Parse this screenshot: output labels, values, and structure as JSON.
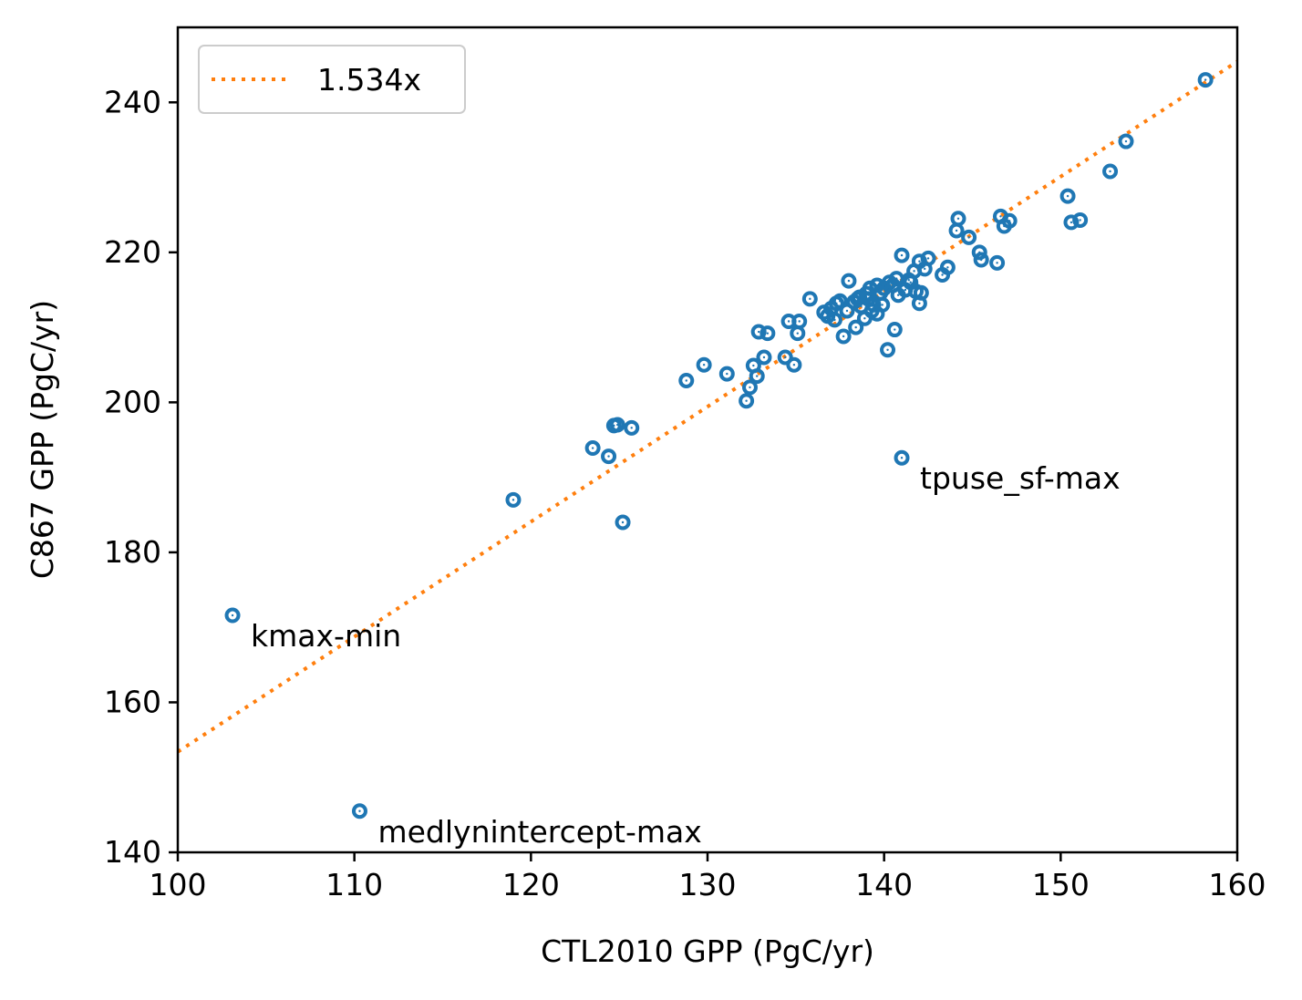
{
  "chart_data": {
    "type": "scatter",
    "title": "",
    "xlabel": "CTL2010 GPP (PgC/yr)",
    "ylabel": "C867 GPP (PgC/yr)",
    "xlim": [
      100,
      160
    ],
    "ylim": [
      140,
      250
    ],
    "xticks": [
      100,
      110,
      120,
      130,
      140,
      150,
      160
    ],
    "yticks": [
      140,
      160,
      180,
      200,
      220,
      240
    ],
    "grid": false,
    "legend_location": "upper left",
    "fit_line": {
      "label": "1.534x",
      "slope": 1.534,
      "style": "dotted",
      "color": "#ff7f0e"
    },
    "point_color": "#1f77b4",
    "points": [
      [
        158.2,
        243.0
      ],
      [
        153.7,
        234.8
      ],
      [
        152.8,
        230.8
      ],
      [
        150.4,
        227.5
      ],
      [
        150.6,
        224.0
      ],
      [
        151.1,
        224.3
      ],
      [
        146.6,
        224.8
      ],
      [
        146.8,
        223.5
      ],
      [
        147.1,
        224.2
      ],
      [
        146.4,
        218.6
      ],
      [
        145.4,
        220.0
      ],
      [
        145.5,
        219.0
      ],
      [
        144.8,
        222.0
      ],
      [
        144.2,
        224.5
      ],
      [
        144.1,
        222.9
      ],
      [
        143.6,
        218.0
      ],
      [
        143.3,
        217.0
      ],
      [
        142.5,
        219.2
      ],
      [
        142.0,
        218.8
      ],
      [
        142.1,
        214.6
      ],
      [
        142.0,
        213.2
      ],
      [
        141.0,
        219.6
      ],
      [
        141.5,
        216.0
      ],
      [
        140.7,
        216.5
      ],
      [
        141.2,
        215.0
      ],
      [
        140.5,
        215.6
      ],
      [
        140.3,
        216.0
      ],
      [
        140.0,
        215.2
      ],
      [
        139.8,
        214.6
      ],
      [
        139.6,
        215.6
      ],
      [
        139.2,
        215.2
      ],
      [
        139.0,
        214.5
      ],
      [
        138.6,
        214.0
      ],
      [
        138.3,
        213.4
      ],
      [
        138.0,
        216.2
      ],
      [
        137.5,
        213.5
      ],
      [
        137.3,
        213.2
      ],
      [
        137.0,
        212.5
      ],
      [
        136.8,
        211.5
      ],
      [
        136.6,
        212.0
      ],
      [
        137.2,
        211.0
      ],
      [
        137.7,
        208.8
      ],
      [
        138.4,
        210.0
      ],
      [
        138.9,
        211.2
      ],
      [
        139.3,
        212.2
      ],
      [
        139.6,
        211.8
      ],
      [
        139.9,
        213.0
      ],
      [
        140.6,
        209.7
      ],
      [
        140.2,
        207.0
      ],
      [
        135.8,
        213.8
      ],
      [
        135.2,
        210.8
      ],
      [
        134.6,
        210.8
      ],
      [
        135.1,
        209.2
      ],
      [
        133.4,
        209.2
      ],
      [
        132.9,
        209.4
      ],
      [
        133.2,
        206.0
      ],
      [
        134.4,
        206.0
      ],
      [
        134.9,
        205.0
      ],
      [
        132.6,
        204.9
      ],
      [
        132.8,
        203.5
      ],
      [
        132.4,
        202.0
      ],
      [
        132.2,
        200.2
      ],
      [
        131.1,
        203.8
      ],
      [
        129.8,
        205.0
      ],
      [
        128.8,
        202.9
      ],
      [
        125.7,
        196.6
      ],
      [
        124.7,
        196.9
      ],
      [
        124.9,
        197.0
      ],
      [
        123.5,
        193.9
      ],
      [
        124.4,
        192.8
      ],
      [
        125.2,
        184.0
      ],
      [
        119.0,
        187.0
      ],
      [
        103.1,
        171.6
      ],
      [
        110.3,
        145.5
      ],
      [
        141.0,
        192.6
      ],
      [
        138.5,
        213.8
      ],
      [
        139.4,
        213.0
      ],
      [
        140.8,
        214.3
      ],
      [
        141.8,
        214.8
      ],
      [
        141.4,
        216.3
      ],
      [
        142.3,
        217.8
      ],
      [
        141.7,
        217.5
      ],
      [
        139.1,
        213.8
      ],
      [
        138.7,
        212.8
      ],
      [
        137.9,
        212.2
      ]
    ],
    "annotations": [
      {
        "text": "tpuse_sf-max",
        "x": 141.0,
        "y": 192.6
      },
      {
        "text": "kmax-min",
        "x": 103.1,
        "y": 171.6
      },
      {
        "text": "medlynintercept-max",
        "x": 110.3,
        "y": 145.5
      }
    ]
  }
}
